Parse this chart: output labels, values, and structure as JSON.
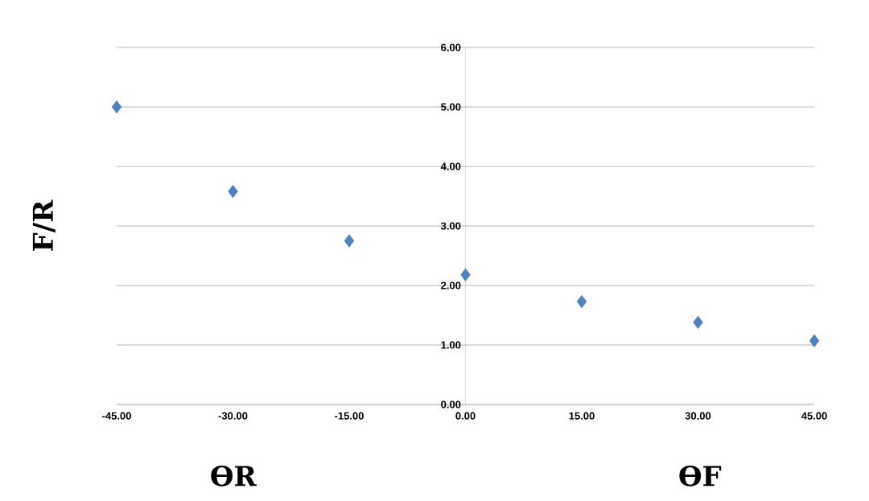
{
  "chart_data": {
    "type": "scatter",
    "ylabel": "F/R",
    "annotations": [
      "ƟR",
      "ƟF"
    ],
    "x": [
      -45,
      -30,
      -15,
      0,
      15,
      30,
      45
    ],
    "series": [
      {
        "color": "#4f81bd",
        "values": [
          5.0,
          3.58,
          2.75,
          2.18,
          1.73,
          1.38,
          1.07
        ]
      }
    ],
    "xlim": [
      -45,
      45
    ],
    "xticks": [
      {
        "value": -45,
        "label": "-45.00"
      },
      {
        "value": -30,
        "label": "-30.00"
      },
      {
        "value": -15,
        "label": "-15.00"
      },
      {
        "value": 0,
        "label": "0.00"
      },
      {
        "value": 15,
        "label": "15.00"
      },
      {
        "value": 30,
        "label": "30.00"
      },
      {
        "value": 45,
        "label": "45.00"
      }
    ],
    "ylim": [
      0,
      6
    ],
    "yticks": [
      {
        "value": 0,
        "label": "0.00"
      },
      {
        "value": 1,
        "label": "1.00"
      },
      {
        "value": 2,
        "label": "2.00"
      },
      {
        "value": 3,
        "label": "3.00"
      },
      {
        "value": 4,
        "label": "4.00"
      },
      {
        "value": 5,
        "label": "5.00"
      },
      {
        "value": 6,
        "label": "6.00"
      }
    ],
    "grid": "y",
    "marker": "diamond",
    "line_style": "none",
    "legend": false
  }
}
